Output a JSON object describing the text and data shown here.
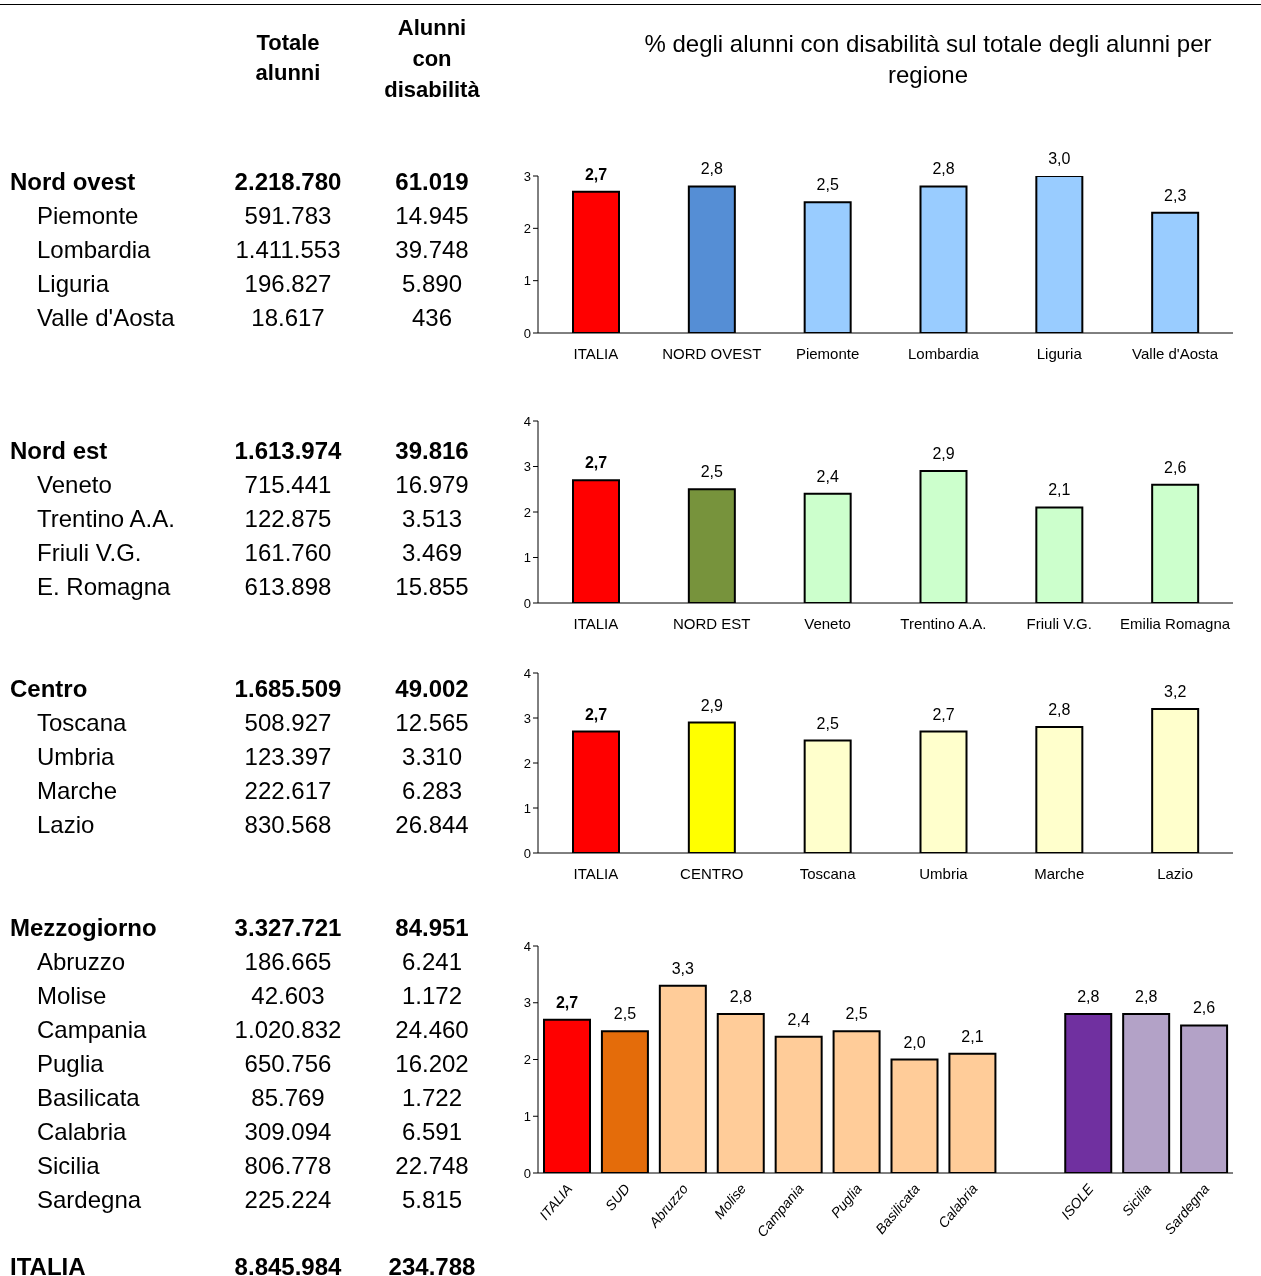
{
  "chart_data": [
    {
      "type": "other",
      "categories": [
        "Nord ovest",
        "Piemonte",
        "Lombardia",
        "Liguria",
        "Valle d'Aosta"
      ],
      "series": [
        {
          "name": "Totale alunni",
          "values": [
            2218780,
            591783,
            1411553,
            196827,
            18617
          ],
          "value_labels": [
            "2.218.780",
            "591.783",
            "1.411.553",
            "196.827",
            "18.617"
          ]
        },
        {
          "name": "Alunni con disabilità",
          "values": [
            61019,
            14945,
            39748,
            5890,
            436
          ],
          "value_labels": [
            "61.019",
            "14.945",
            "39.748",
            "5.890",
            "436"
          ]
        }
      ]
    },
    {
      "type": "bar",
      "title": "% degli alunni con disabilità sul totale degli alunni per regione",
      "categories": [
        "ITALIA",
        "NORD OVEST",
        "Piemonte",
        "Lombardia",
        "Liguria",
        "Valle d'Aosta"
      ],
      "values": [
        2.7,
        2.8,
        2.5,
        2.8,
        3.0,
        2.3
      ],
      "value_labels": [
        "2,7",
        "2,8",
        "2,5",
        "2,8",
        "3,0",
        "2,3"
      ],
      "colors": [
        "#ff0000",
        "#558ed5",
        "#99ccff",
        "#99ccff",
        "#99ccff",
        "#99ccff"
      ],
      "ylim": [
        0,
        3
      ],
      "yticks": [
        0,
        1,
        2,
        3
      ],
      "grid": false,
      "legend": false
    },
    {
      "type": "other",
      "categories": [
        "Nord est",
        "Veneto",
        "Trentino A.A.",
        "Friuli V.G.",
        "E. Romagna"
      ],
      "series": [
        {
          "values": [
            1613974,
            715441,
            122875,
            161760,
            613898
          ],
          "value_labels": [
            "1.613.974",
            "715.441",
            "122.875",
            "161.760",
            "613.898"
          ]
        },
        {
          "values": [
            39816,
            16979,
            3513,
            3469,
            15855
          ],
          "value_labels": [
            "39.816",
            "16.979",
            "3.513",
            "3.469",
            "15.855"
          ]
        }
      ]
    },
    {
      "type": "bar",
      "categories": [
        "ITALIA",
        "NORD EST",
        "Veneto",
        "Trentino A.A.",
        "Friuli V.G.",
        "Emilia Romagna"
      ],
      "values": [
        2.7,
        2.5,
        2.4,
        2.9,
        2.1,
        2.6
      ],
      "value_labels": [
        "2,7",
        "2,5",
        "2,4",
        "2,9",
        "2,1",
        "2,6"
      ],
      "colors": [
        "#ff0000",
        "#77933c",
        "#ccffcc",
        "#ccffcc",
        "#ccffcc",
        "#ccffcc"
      ],
      "ylim": [
        0,
        4
      ],
      "yticks": [
        0,
        1,
        2,
        3,
        4
      ],
      "grid": false,
      "legend": false
    },
    {
      "type": "other",
      "categories": [
        "Centro",
        "Toscana",
        "Umbria",
        "Marche",
        "Lazio"
      ],
      "series": [
        {
          "values": [
            1685509,
            508927,
            123397,
            222617,
            830568
          ],
          "value_labels": [
            "1.685.509",
            "508.927",
            "123.397",
            "222.617",
            "830.568"
          ]
        },
        {
          "values": [
            49002,
            12565,
            3310,
            6283,
            26844
          ],
          "value_labels": [
            "49.002",
            "12.565",
            "3.310",
            "6.283",
            "26.844"
          ]
        }
      ]
    },
    {
      "type": "bar",
      "categories": [
        "ITALIA",
        "CENTRO",
        "Toscana",
        "Umbria",
        "Marche",
        "Lazio"
      ],
      "values": [
        2.7,
        2.9,
        2.5,
        2.7,
        2.8,
        3.2
      ],
      "value_labels": [
        "2,7",
        "2,9",
        "2,5",
        "2,7",
        "2,8",
        "3,2"
      ],
      "colors": [
        "#ff0000",
        "#ffff00",
        "#ffffcc",
        "#ffffcc",
        "#ffffcc",
        "#ffffcc"
      ],
      "ylim": [
        0,
        4
      ],
      "yticks": [
        0,
        1,
        2,
        3,
        4
      ],
      "grid": false,
      "legend": false
    },
    {
      "type": "other",
      "categories": [
        "Mezzogiorno",
        "Abruzzo",
        "Molise",
        "Campania",
        "Puglia",
        "Basilicata",
        "Calabria",
        "Sicilia",
        "Sardegna"
      ],
      "series": [
        {
          "values": [
            3327721,
            186665,
            42603,
            1020832,
            650756,
            85769,
            309094,
            806778,
            225224
          ],
          "value_labels": [
            "3.327.721",
            "186.665",
            "42.603",
            "1.020.832",
            "650.756",
            "85.769",
            "309.094",
            "806.778",
            "225.224"
          ]
        },
        {
          "values": [
            84951,
            6241,
            1172,
            24460,
            16202,
            1722,
            6591,
            22748,
            5815
          ],
          "value_labels": [
            "84.951",
            "6.241",
            "1.172",
            "24.460",
            "16.202",
            "1.722",
            "6.591",
            "22.748",
            "5.815"
          ]
        }
      ]
    },
    {
      "type": "bar",
      "categories": [
        "ITALIA",
        "SUD",
        "Abruzzo",
        "Molise",
        "Campania",
        "Puglia",
        "Basilicata",
        "Calabria",
        null,
        "ISOLE",
        "Sicilia",
        "Sardegna"
      ],
      "values": [
        2.7,
        2.5,
        3.3,
        2.8,
        2.4,
        2.5,
        2.0,
        2.1,
        null,
        2.8,
        2.8,
        2.6
      ],
      "value_labels": [
        "2,7",
        "2,5",
        "3,3",
        "2,8",
        "2,4",
        "2,5",
        "2,0",
        "2,1",
        null,
        "2,8",
        "2,8",
        "2,6"
      ],
      "colors": [
        "#ff0000",
        "#e46c0a",
        "#ffcc99",
        "#ffcc99",
        "#ffcc99",
        "#ffcc99",
        "#ffcc99",
        "#ffcc99",
        "#ffffff",
        "#7030a0",
        "#b3a2c7",
        "#b3a2c7"
      ],
      "ylim": [
        0,
        4
      ],
      "yticks": [
        0,
        1,
        2,
        3,
        4
      ],
      "grid": false,
      "legend": false
    },
    {
      "type": "other",
      "categories": [
        "ITALIA"
      ],
      "series": [
        {
          "values": [
            8845984
          ],
          "value_labels": [
            "8.845.984"
          ]
        },
        {
          "values": [
            234788
          ],
          "value_labels": [
            "234.788"
          ]
        }
      ]
    }
  ]
}
